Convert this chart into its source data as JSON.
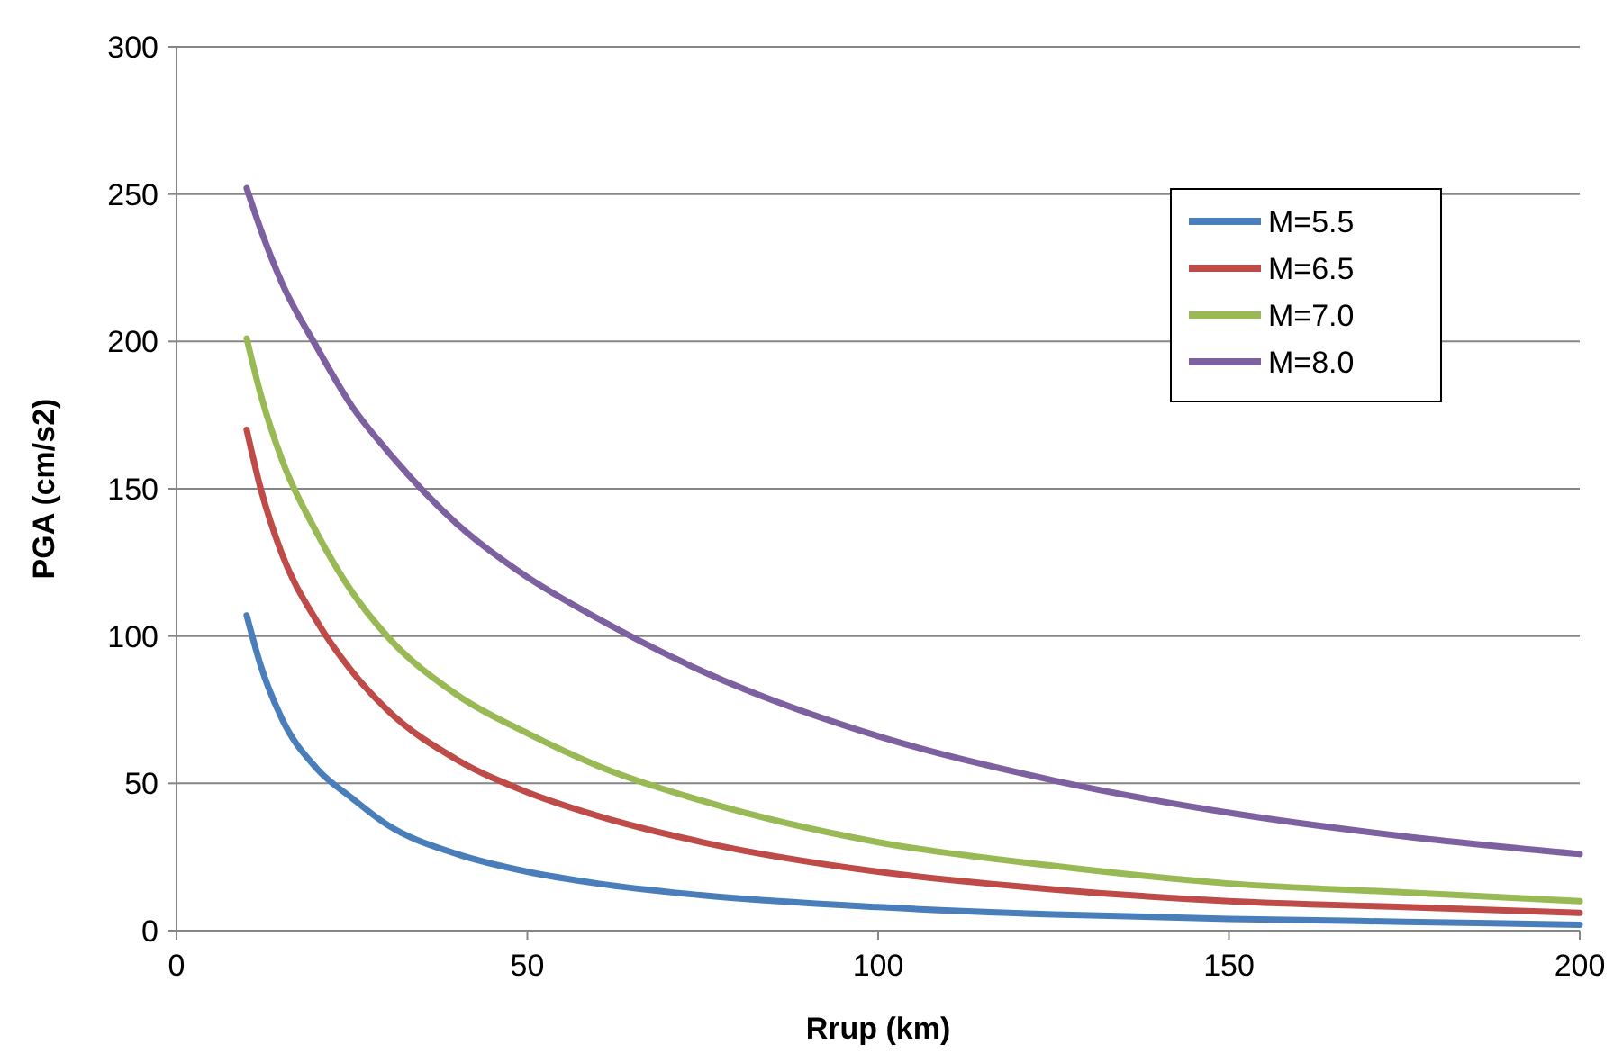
{
  "chart_data": {
    "type": "line",
    "xlabel": "Rrup (km)",
    "ylabel": "PGA (cm/s2)",
    "x": [
      10,
      12,
      15,
      20,
      25,
      30,
      40,
      50,
      60,
      75,
      100,
      125,
      150,
      175,
      200
    ],
    "series": [
      {
        "name": "M=5.5",
        "color": "#4a7ebb",
        "values": [
          107,
          90,
          72,
          55,
          45,
          36,
          26,
          20,
          16,
          12,
          8,
          5.5,
          4,
          3,
          2
        ]
      },
      {
        "name": "M=6.5",
        "color": "#be4b48",
        "values": [
          170,
          150,
          128,
          105,
          88,
          75,
          58,
          47,
          39,
          30,
          20,
          14,
          10,
          8,
          6
        ]
      },
      {
        "name": "M=7.0",
        "color": "#98b954",
        "values": [
          201,
          182,
          160,
          135,
          115,
          100,
          80,
          67,
          56,
          44,
          30,
          22,
          16,
          13,
          10
        ]
      },
      {
        "name": "M=8.0",
        "color": "#7d60a0",
        "values": [
          252,
          238,
          220,
          198,
          178,
          163,
          138,
          120,
          106,
          88,
          66,
          51,
          40,
          32,
          26
        ]
      }
    ],
    "xlim": [
      0,
      200
    ],
    "xticks": [
      0,
      50,
      100,
      150,
      200
    ],
    "ylim": [
      0,
      300
    ],
    "yticks": [
      0,
      50,
      100,
      150,
      200,
      250,
      300
    ],
    "grid": "y",
    "legend": "top right",
    "line_style": "solid"
  }
}
